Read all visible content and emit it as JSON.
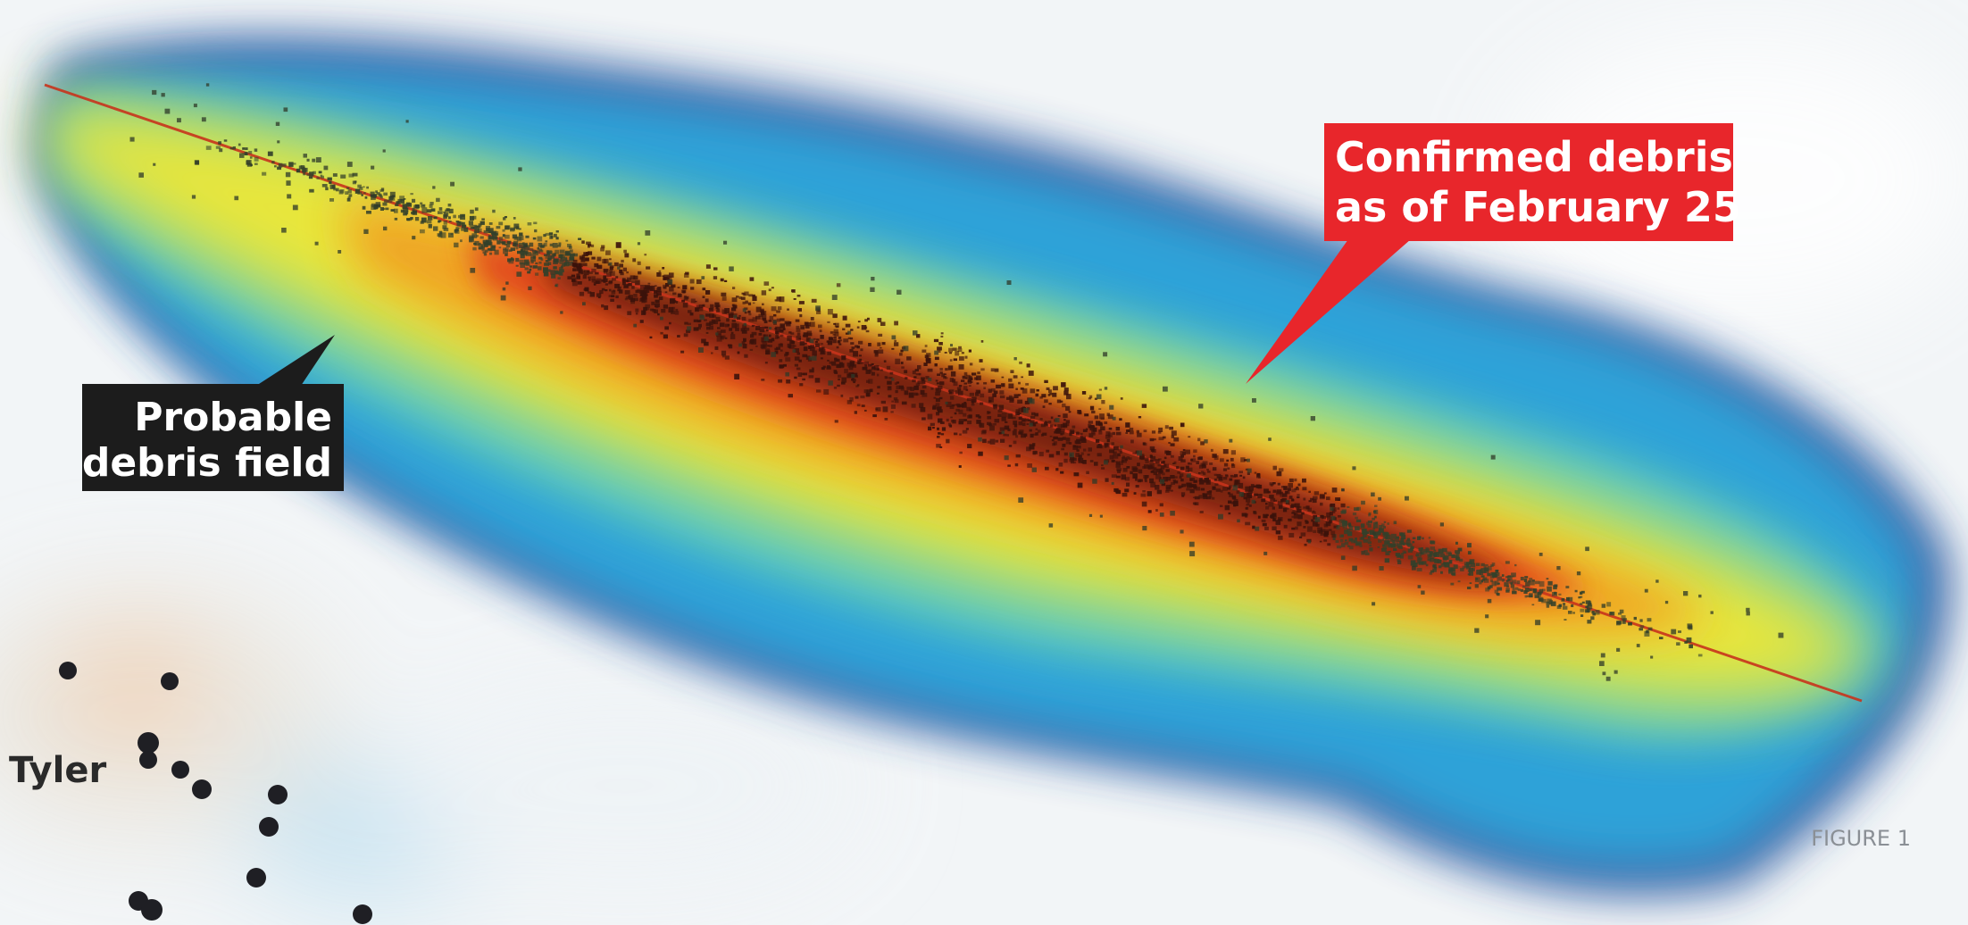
{
  "map": {
    "labels": {
      "probable_line1": "Probable",
      "probable_line2": "debris field",
      "confirmed_line1": "Confirmed debris",
      "confirmed_line2": "as of February 25",
      "town": "Tyler",
      "figure": "FIGURE 1"
    },
    "colors": {
      "probable_callout": "#1c1c1c",
      "confirmed_callout": "#e8262b",
      "track_line": "#c8341c",
      "debris_dot": "#2a1a12",
      "town_marker": "#1f1f24"
    },
    "legend_scale": [
      "#2e4f9a",
      "#2f9fd6",
      "#58c9c3",
      "#e9e63a",
      "#f0a024",
      "#e1471e",
      "#6a1a0f"
    ]
  }
}
